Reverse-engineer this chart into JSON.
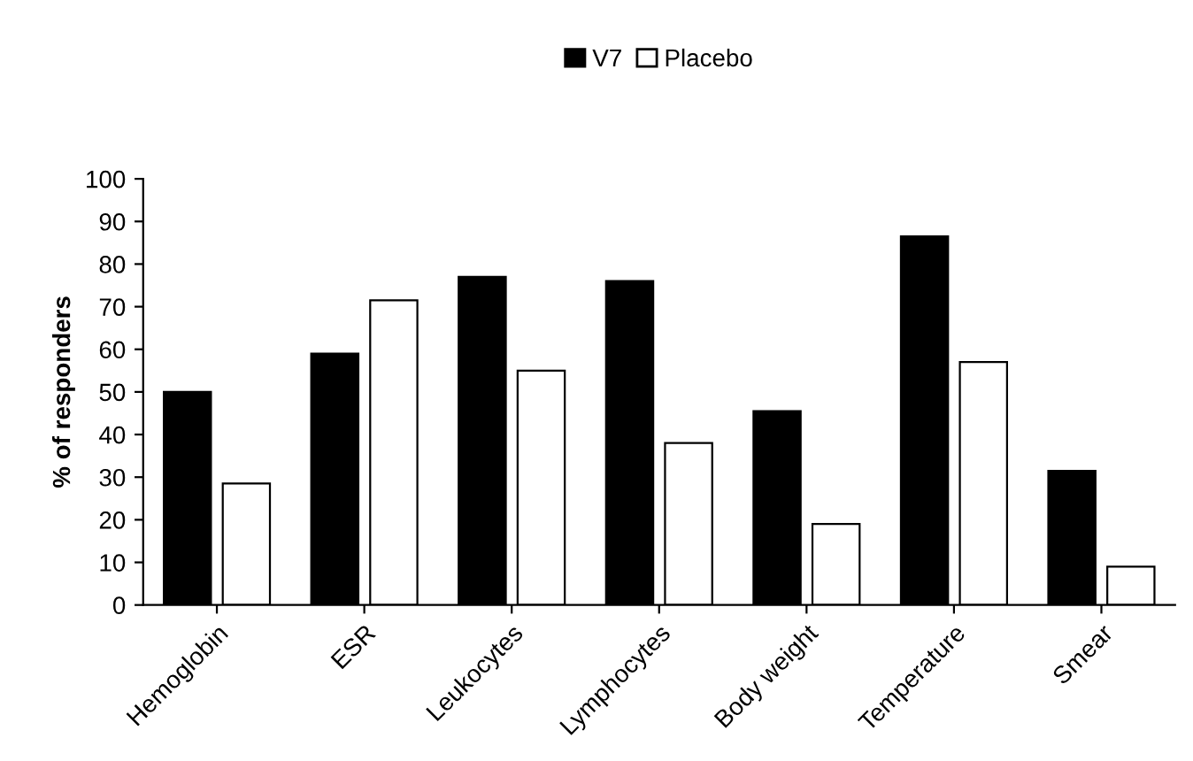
{
  "chart_data": {
    "type": "bar",
    "ylabel": "% of responders",
    "categories": [
      "Hemoglobin",
      "ESR",
      "Leukocytes",
      "Lymphocytes",
      "Body weight",
      "Temperature",
      "Smear"
    ],
    "series": [
      {
        "name": "V7",
        "color": "#000000",
        "values": [
          50,
          59,
          77,
          76,
          45.5,
          86.5,
          31.5
        ]
      },
      {
        "name": "Placebo",
        "color": "#ffffff",
        "values": [
          28.5,
          71.5,
          55,
          38,
          19,
          57,
          9
        ]
      }
    ],
    "ylim": [
      0,
      100
    ],
    "yticks": [
      0,
      10,
      20,
      30,
      40,
      50,
      60,
      70,
      80,
      90,
      100
    ],
    "grid": false,
    "legend": "top"
  }
}
